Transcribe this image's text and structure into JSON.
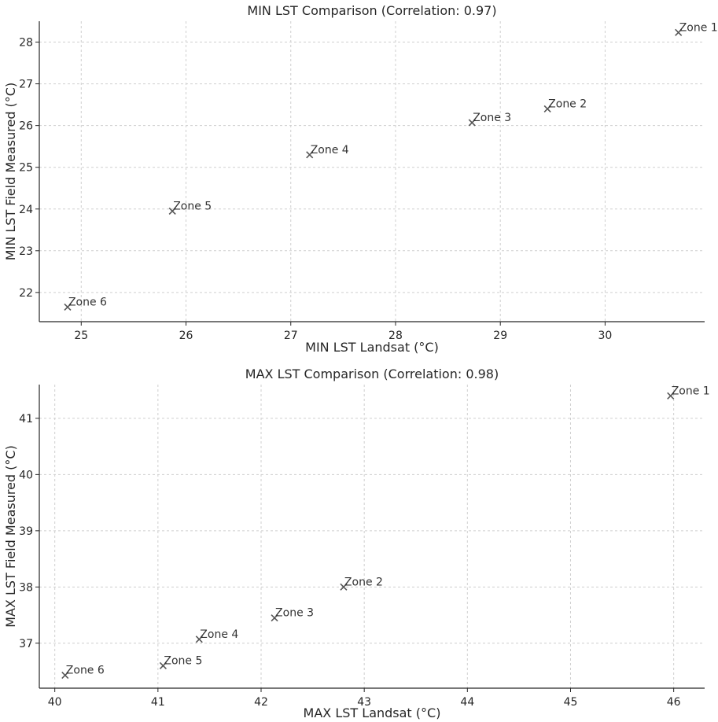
{
  "chart_data": [
    {
      "type": "scatter",
      "title": "MIN LST Comparison (Correlation: 0.97)",
      "xlabel": "MIN LST Landsat (°C)",
      "ylabel": "MIN LST Field Measured (°C)",
      "xlim": [
        24.6,
        30.95
      ],
      "ylim": [
        21.3,
        28.5
      ],
      "xticks": [
        25,
        26,
        27,
        28,
        29,
        30
      ],
      "yticks": [
        22,
        23,
        24,
        25,
        26,
        27,
        28
      ],
      "grid": true,
      "marker_color": "#555555",
      "points": [
        {
          "label": "Zone 1",
          "x": 30.7,
          "y": 28.23
        },
        {
          "label": "Zone 2",
          "x": 29.45,
          "y": 26.4
        },
        {
          "label": "Zone 3",
          "x": 28.73,
          "y": 26.07
        },
        {
          "label": "Zone 4",
          "x": 27.18,
          "y": 25.3
        },
        {
          "label": "Zone 5",
          "x": 25.87,
          "y": 23.95
        },
        {
          "label": "Zone 6",
          "x": 24.87,
          "y": 21.65
        }
      ]
    },
    {
      "type": "scatter",
      "title": "MAX LST Comparison (Correlation: 0.98)",
      "xlabel": "MAX LST Landsat (°C)",
      "ylabel": "MAX LST Field Measured (°C)",
      "xlim": [
        39.85,
        46.3
      ],
      "ylim": [
        36.2,
        41.6
      ],
      "xticks": [
        40,
        41,
        42,
        43,
        44,
        45,
        46
      ],
      "yticks": [
        37,
        38,
        39,
        40,
        41
      ],
      "grid": true,
      "marker_color": "#555555",
      "points": [
        {
          "label": "Zone 1",
          "x": 45.97,
          "y": 41.4
        },
        {
          "label": "Zone 2",
          "x": 42.8,
          "y": 38.0
        },
        {
          "label": "Zone 3",
          "x": 42.13,
          "y": 37.45
        },
        {
          "label": "Zone 4",
          "x": 41.4,
          "y": 37.07
        },
        {
          "label": "Zone 5",
          "x": 41.05,
          "y": 36.6
        },
        {
          "label": "Zone 6",
          "x": 40.1,
          "y": 36.43
        }
      ]
    }
  ]
}
